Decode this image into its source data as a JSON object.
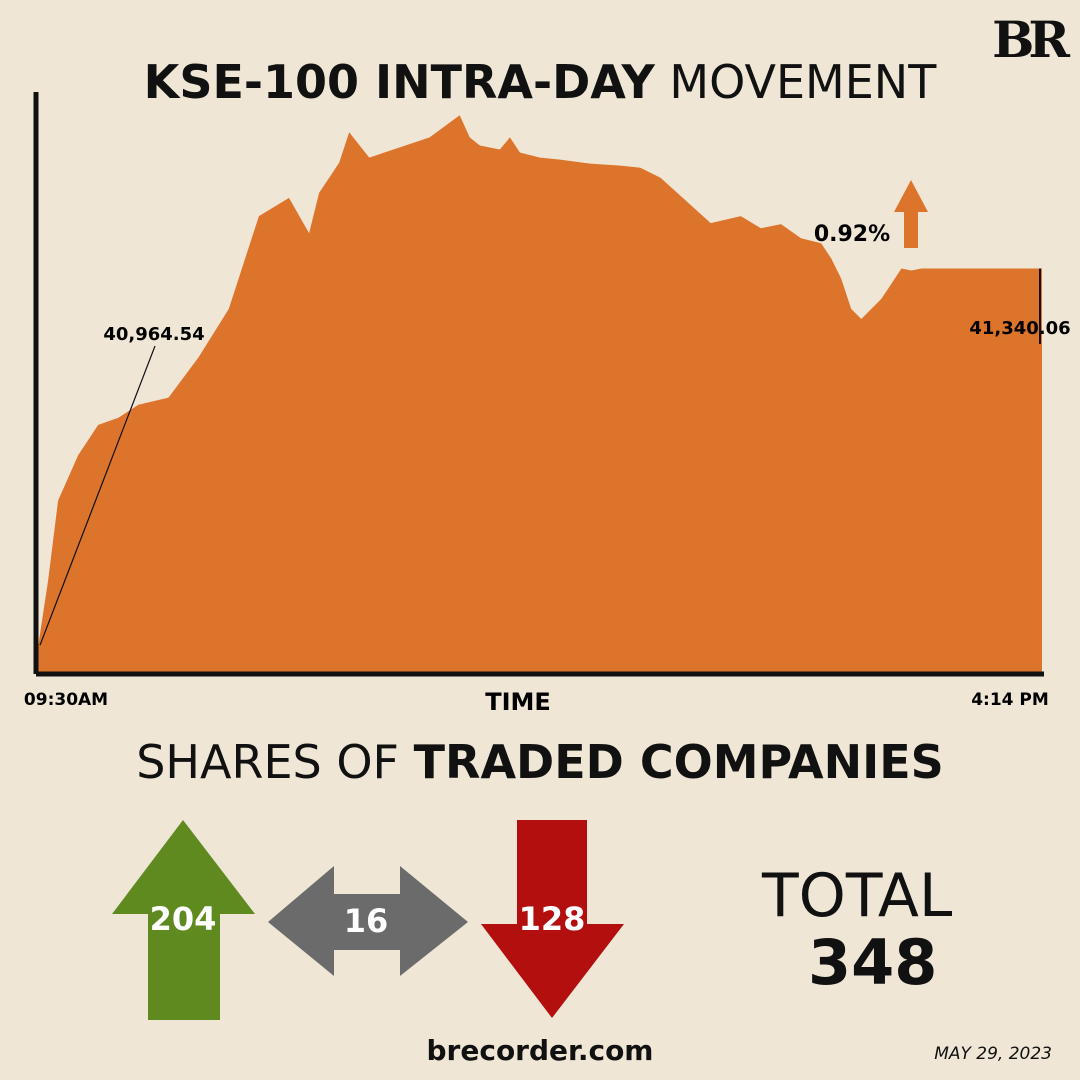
{
  "brand": {
    "logo": "BR",
    "website": "brecorder.com",
    "date": "MAY 29, 2023"
  },
  "title": {
    "bold": "KSE-100 INTRA-DAY",
    "light": "MOVEMENT"
  },
  "colors": {
    "area": "#dd742c",
    "up": "#5f8a1f",
    "neutral": "#6b6b6b",
    "down": "#b30f0f",
    "change_arrow": "#dd742c",
    "background": "#efe6d6"
  },
  "chart_data": {
    "type": "area",
    "title": "KSE-100 INTRA-DAY MOVEMENT",
    "xlabel": "TIME",
    "ylabel": "",
    "x_start_label": "09:30AM",
    "x_end_label": "4:14 PM",
    "x": [
      0,
      0.01,
      0.02,
      0.04,
      0.06,
      0.08,
      0.1,
      0.13,
      0.16,
      0.19,
      0.22,
      0.25,
      0.27,
      0.28,
      0.29,
      0.3,
      0.31,
      0.33,
      0.36,
      0.39,
      0.42,
      0.43,
      0.44,
      0.46,
      0.47,
      0.48,
      0.5,
      0.52,
      0.55,
      0.58,
      0.6,
      0.62,
      0.64,
      0.67,
      0.7,
      0.72,
      0.74,
      0.76,
      0.78,
      0.79,
      0.8,
      0.81,
      0.82,
      0.84,
      0.85,
      0.86,
      0.87,
      0.88,
      1.0
    ],
    "values": [
      40964.54,
      41030,
      41110,
      41155,
      41185,
      41192,
      41205,
      41212,
      41252,
      41300,
      41392,
      41410,
      41375,
      41415,
      41430,
      41445,
      41475,
      41450,
      41460,
      41470,
      41492,
      41470,
      41462,
      41458,
      41470,
      41455,
      41450,
      41448,
      41444,
      41442,
      41440,
      41430,
      41412,
      41385,
      41392,
      41380,
      41384,
      41370,
      41365,
      41350,
      41330,
      41300,
      41290,
      41310,
      41325,
      41340,
      41338,
      41340.06,
      41340.06
    ],
    "annotations": [
      {
        "label": "40,964.54",
        "target": "open"
      },
      {
        "label": "41,340.06",
        "target": "close"
      }
    ],
    "change": "0.92%",
    "ylim": [
      40940,
      41515
    ]
  },
  "companies": {
    "title_light": "SHARES OF",
    "title_bold": "TRADED COMPANIES",
    "advanced": "204",
    "unchanged": "16",
    "declined": "128",
    "total_label": "TOTAL",
    "total_value": "348"
  }
}
